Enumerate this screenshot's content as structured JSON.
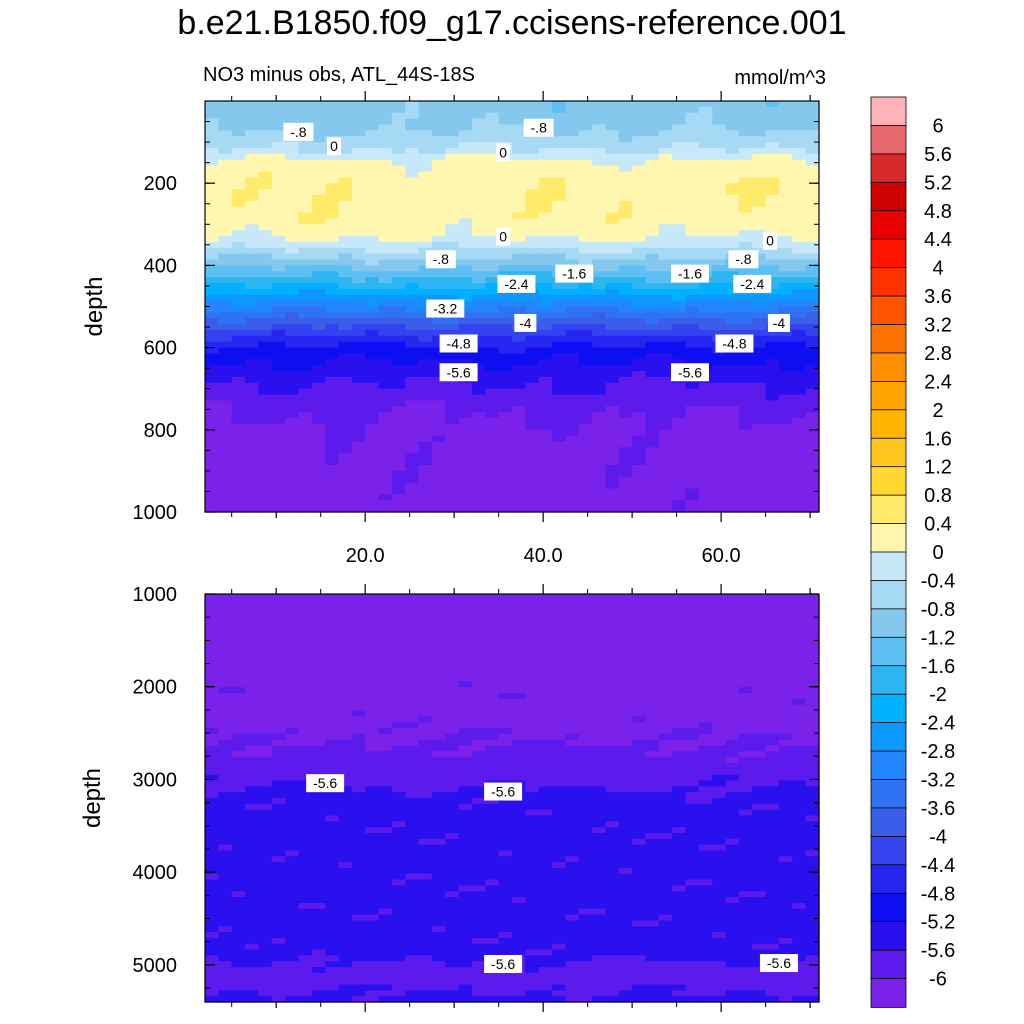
{
  "title": "b.e21.B1850.f09_g17.ccisens-reference.001",
  "subtitle_left": "NO3 minus obs, ATL_44S-18S",
  "subtitle_right": "mmol/m^3",
  "chart_data": [
    {
      "type": "heatmap",
      "panel": "upper",
      "ylabel": "depth",
      "xlabel": "",
      "ylim": [
        1000,
        0
      ],
      "xlim": [
        2,
        71
      ],
      "y_ticks": [
        "200",
        "400",
        "600",
        "800",
        "1000"
      ],
      "x_ticks": [
        "20.0",
        "40.0",
        "60.0"
      ],
      "depth_profile": [
        {
          "depth": 10,
          "value": -1.0
        },
        {
          "depth": 60,
          "value": -0.9
        },
        {
          "depth": 110,
          "value": -0.5
        },
        {
          "depth": 150,
          "value": 0.1
        },
        {
          "depth": 200,
          "value": 0.3
        },
        {
          "depth": 280,
          "value": 0.3
        },
        {
          "depth": 330,
          "value": 0.05
        },
        {
          "depth": 360,
          "value": -0.4
        },
        {
          "depth": 400,
          "value": -1.1
        },
        {
          "depth": 440,
          "value": -1.8
        },
        {
          "depth": 480,
          "value": -2.6
        },
        {
          "depth": 520,
          "value": -3.4
        },
        {
          "depth": 560,
          "value": -4.2
        },
        {
          "depth": 600,
          "value": -4.9
        },
        {
          "depth": 660,
          "value": -5.4
        },
        {
          "depth": 720,
          "value": -5.8
        },
        {
          "depth": 800,
          "value": -6.1
        },
        {
          "depth": 1000,
          "value": -6.2
        }
      ],
      "contour_labels": [
        {
          "text": "-.8",
          "x": 12.5,
          "depth": 75
        },
        {
          "text": "-.8",
          "x": 39.5,
          "depth": 65
        },
        {
          "text": "0",
          "x": 16.5,
          "depth": 110
        },
        {
          "text": "0",
          "x": 35.5,
          "depth": 125
        },
        {
          "text": "0",
          "x": 35.5,
          "depth": 330
        },
        {
          "text": "0",
          "x": 65.5,
          "depth": 340
        },
        {
          "text": "-.8",
          "x": 28.5,
          "depth": 385
        },
        {
          "text": "-.8",
          "x": 62.5,
          "depth": 385
        },
        {
          "text": "-1.6",
          "x": 43.5,
          "depth": 420
        },
        {
          "text": "-1.6",
          "x": 56.5,
          "depth": 420
        },
        {
          "text": "-2.4",
          "x": 37,
          "depth": 445
        },
        {
          "text": "-2.4",
          "x": 63.5,
          "depth": 445
        },
        {
          "text": "-3.2",
          "x": 29,
          "depth": 505
        },
        {
          "text": "-4",
          "x": 38,
          "depth": 540
        },
        {
          "text": "-4",
          "x": 66.5,
          "depth": 540
        },
        {
          "text": "-4.8",
          "x": 30.5,
          "depth": 590
        },
        {
          "text": "-4.8",
          "x": 61.5,
          "depth": 590
        },
        {
          "text": "-5.6",
          "x": 30.5,
          "depth": 660
        },
        {
          "text": "-5.6",
          "x": 56.5,
          "depth": 660
        }
      ]
    },
    {
      "type": "heatmap",
      "panel": "lower",
      "ylabel": "depth",
      "xlabel": "",
      "ylim": [
        1000,
        5400
      ],
      "xlim": [
        2,
        71
      ],
      "y_ticks": [
        "1000",
        "2000",
        "3000",
        "4000",
        "5000"
      ],
      "depth_profile": [
        {
          "depth": 1000,
          "value": -6.2
        },
        {
          "depth": 2400,
          "value": -6.1
        },
        {
          "depth": 2800,
          "value": -5.9
        },
        {
          "depth": 3200,
          "value": -5.5
        },
        {
          "depth": 4900,
          "value": -5.5
        },
        {
          "depth": 5100,
          "value": -5.8
        },
        {
          "depth": 5400,
          "value": -5.5
        }
      ],
      "contour_labels": [
        {
          "text": "-5.6",
          "x": 15.5,
          "depth": 3040
        },
        {
          "text": "-5.6",
          "x": 35.5,
          "depth": 3130
        },
        {
          "text": "-5.6",
          "x": 35.5,
          "depth": 4990
        },
        {
          "text": "-5.6",
          "x": 66.5,
          "depth": 4980
        }
      ]
    }
  ],
  "colorbar": {
    "labels": [
      "6",
      "5.6",
      "5.2",
      "4.8",
      "4.4",
      "4",
      "3.6",
      "3.2",
      "2.8",
      "2.4",
      "2",
      "1.6",
      "1.2",
      "0.8",
      "0.4",
      "0",
      "-0.4",
      "-0.8",
      "-1.2",
      "-1.6",
      "-2",
      "-2.4",
      "-2.8",
      "-3.2",
      "-3.6",
      "-4",
      "-4.4",
      "-4.8",
      "-5.2",
      "-5.6",
      "-6"
    ],
    "colors": [
      "#ffb3b8",
      "#e96a6e",
      "#d72a2a",
      "#cf0000",
      "#e90000",
      "#ff1500",
      "#ff3300",
      "#ff5500",
      "#ff7300",
      "#ff8e00",
      "#ffa400",
      "#ffb500",
      "#ffc61e",
      "#ffd932",
      "#ffea6a",
      "#fff6b0",
      "#c6e8f8",
      "#a6daf4",
      "#84c8ee",
      "#5ebff2",
      "#2eb6f3",
      "#00b1ff",
      "#0d97ff",
      "#2386ff",
      "#2f72f4",
      "#3b5ee8",
      "#3343ef",
      "#2626f0",
      "#0e0ef2",
      "#2a10ef",
      "#5c1aec",
      "#7a22ea"
    ]
  }
}
